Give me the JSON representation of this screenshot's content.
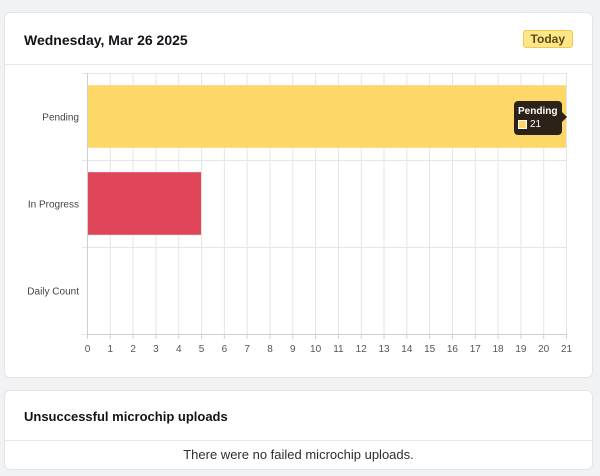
{
  "header": {
    "title": "Wednesday, Mar 26 2025",
    "today_label": "Today"
  },
  "chart_data": {
    "type": "bar",
    "orientation": "horizontal",
    "categories": [
      "Pending",
      "In Progress",
      "Daily Count"
    ],
    "series": [
      {
        "values": [
          21,
          5,
          0
        ],
        "colors": [
          "#fdd868",
          "#df4657",
          "#9ca3af"
        ]
      }
    ],
    "xlim": [
      0,
      21
    ],
    "xticks": [
      0,
      1,
      2,
      3,
      4,
      5,
      6,
      7,
      8,
      9,
      10,
      11,
      12,
      13,
      14,
      15,
      16,
      17,
      18,
      19,
      20,
      21
    ],
    "grid": true,
    "title": "",
    "xlabel": "",
    "ylabel": ""
  },
  "tooltip": {
    "title": "Pending",
    "value": "21",
    "swatch_color": "#fdd868"
  },
  "uploads": {
    "title": "Unsuccessful microchip uploads",
    "empty_message": "There were no failed microchip uploads."
  }
}
